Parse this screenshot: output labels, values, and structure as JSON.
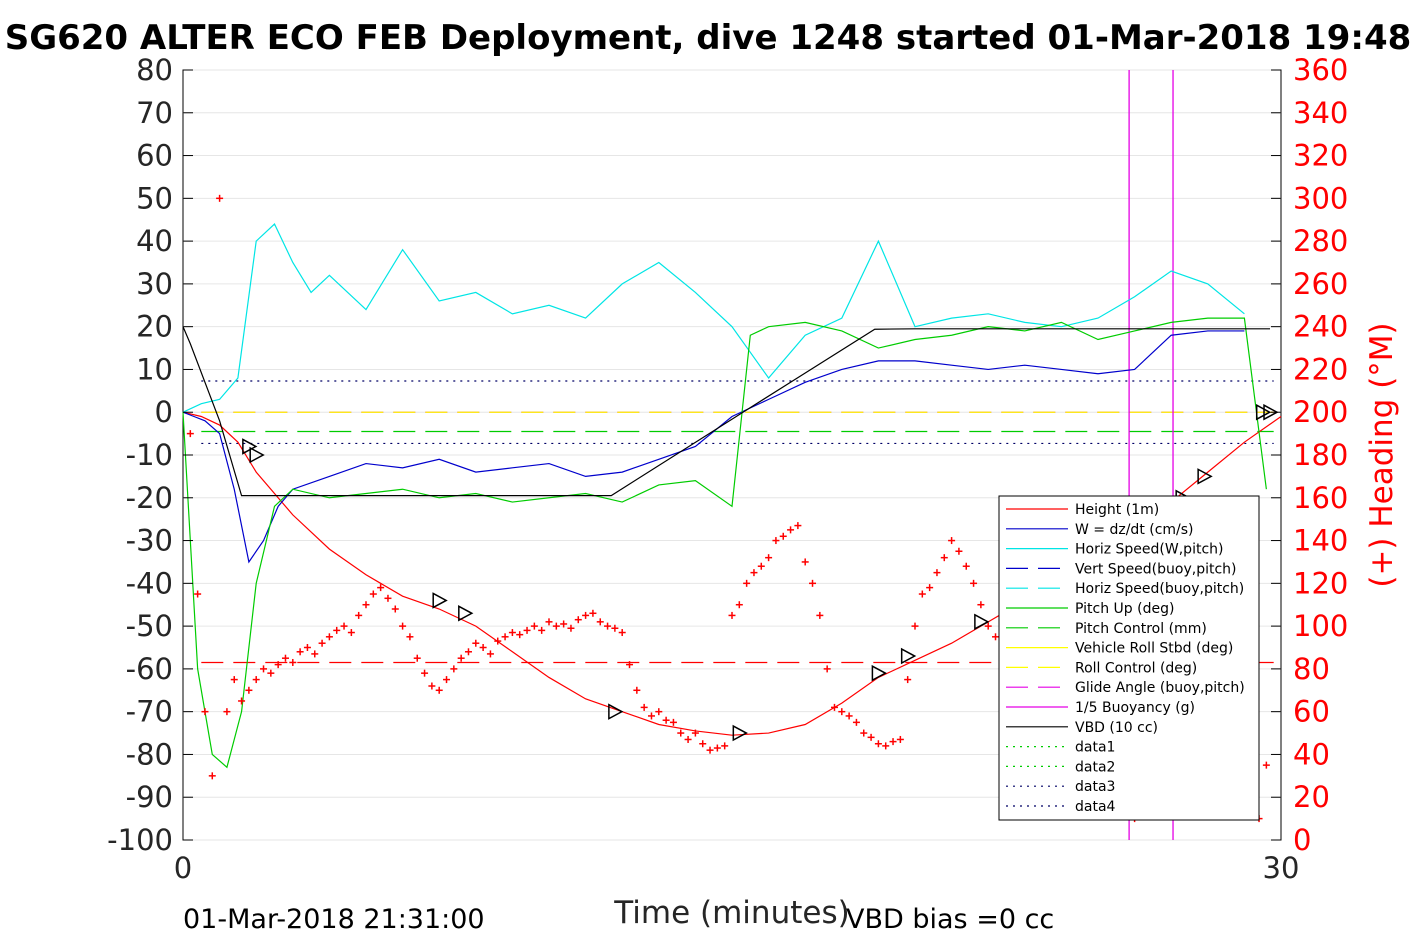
{
  "chart_data": {
    "type": "line",
    "title": "SG620 ALTER ECO FEB Deployment, dive 1248 started 01-Mar-2018 19:48",
    "xlabel": "Time (minutes)",
    "ylabel_right": "(+) Heading (°M)",
    "footer_left": "01-Mar-2018 21:31:00",
    "footer_right": "VBD bias =0 cc",
    "xlim": [
      0,
      30
    ],
    "ylim": [
      -100,
      80
    ],
    "ylim_right": [
      0,
      360
    ],
    "x_ticks": [
      0,
      30
    ],
    "y_ticks": [
      80,
      70,
      60,
      50,
      40,
      30,
      20,
      10,
      0,
      -10,
      -20,
      -30,
      -40,
      -50,
      -60,
      -70,
      -80,
      -90,
      -100
    ],
    "y_ticks_right": [
      360,
      340,
      320,
      300,
      280,
      260,
      240,
      220,
      200,
      180,
      160,
      140,
      120,
      100,
      80,
      60,
      40,
      20,
      0
    ],
    "grid": "horizontal",
    "legend_position": "bottom-right",
    "colors": {
      "height": "#ff0000",
      "w": "#0000cc",
      "horiz_speed": "#00e5e5",
      "pitch": "#00cc00",
      "roll": "#ffff00",
      "glide": "#e500e5",
      "vbd": "#000000",
      "heading": "#ff0000"
    },
    "legend": [
      {
        "label": "Height (1m)",
        "color": "#ff0000",
        "style": "solid"
      },
      {
        "label": "W = dz/dt (cm/s)",
        "color": "#0000cc",
        "style": "solid"
      },
      {
        "label": "Horiz Speed(W,pitch)",
        "color": "#00e5e5",
        "style": "solid"
      },
      {
        "label": "Vert Speed(buoy,pitch)",
        "color": "#0000cc",
        "style": "dashed"
      },
      {
        "label": "Horiz Speed(buoy,pitch)",
        "color": "#00e5e5",
        "style": "dashed"
      },
      {
        "label": "Pitch Up (deg)",
        "color": "#00cc00",
        "style": "solid"
      },
      {
        "label": "Pitch Control (mm)",
        "color": "#00cc00",
        "style": "dashed"
      },
      {
        "label": "Vehicle Roll Stbd (deg)",
        "color": "#ffff00",
        "style": "solid"
      },
      {
        "label": "Roll Control (deg)",
        "color": "#ffff00",
        "style": "dashed"
      },
      {
        "label": "Glide Angle (buoy,pitch)",
        "color": "#e500e5",
        "style": "dashed"
      },
      {
        "label": "1/5 Buoyancy (g)",
        "color": "#e500e5",
        "style": "solid"
      },
      {
        "label": "VBD (10 cc)",
        "color": "#000000",
        "style": "solid"
      },
      {
        "label": "data1",
        "color": "#00cc00",
        "style": "dotted"
      },
      {
        "label": "data2",
        "color": "#00cc00",
        "style": "dotted"
      },
      {
        "label": "data3",
        "color": "#000066",
        "style": "dotted"
      },
      {
        "label": "data4",
        "color": "#000066",
        "style": "dotted"
      }
    ],
    "series": [
      {
        "name": "Height (1m)",
        "x": [
          0.0,
          0.5,
          1.0,
          1.5,
          2.0,
          3.0,
          4.0,
          5.0,
          6.0,
          7.0,
          8.0,
          9.0,
          10.0,
          11.0,
          12.0,
          13.0,
          14.0,
          15.0,
          16.0,
          17.0,
          18.0,
          19.0,
          20.0,
          21.0,
          22.0,
          23.0,
          24.0,
          25.0,
          26.0,
          27.0,
          28.0,
          29.0,
          30.0
        ],
        "y": [
          0,
          -1,
          -3,
          -7,
          -14,
          -24,
          -32,
          -38,
          -43,
          -46,
          -50,
          -56,
          -62,
          -67,
          -70,
          -73,
          -74.5,
          -75.5,
          -75,
          -73,
          -68,
          -62,
          -58,
          -54,
          -49,
          -44,
          -39,
          -34,
          -28,
          -21,
          -14,
          -7,
          -1
        ],
        "scale": 0.3
      },
      {
        "name": "W = dz/dt (cm/s)",
        "x": [
          0,
          0.3,
          0.6,
          1.0,
          1.4,
          1.8,
          2.2,
          2.6,
          3.0,
          4.0,
          5.0,
          6.0,
          7.0,
          8.0,
          9.0,
          10.0,
          11.0,
          12.0,
          13.0,
          14.0,
          15.0,
          16.0,
          17.0,
          18.0,
          19.0,
          20.0,
          21.0,
          22.0,
          23.0,
          24.0,
          25.0,
          26.0,
          27.0,
          28.0,
          29.0
        ],
        "y": [
          0,
          -1,
          -2,
          -5,
          -18,
          -35,
          -30,
          -22,
          -18,
          -15,
          -12,
          -13,
          -11,
          -14,
          -13,
          -12,
          -15,
          -14,
          -11,
          -8,
          -1,
          3,
          7,
          10,
          12,
          12,
          11,
          10,
          11,
          10,
          9,
          10,
          18,
          19,
          19
        ],
        "scale": 0.3
      },
      {
        "name": "Horiz Speed(W,pitch)",
        "x": [
          0,
          0.5,
          1.0,
          1.5,
          2.0,
          2.5,
          3.0,
          3.5,
          4.0,
          5.0,
          6.0,
          7.0,
          8.0,
          9.0,
          10.0,
          11.0,
          12.0,
          13.0,
          14.0,
          15.0,
          16.0,
          17.0,
          18.0,
          19.0,
          20.0,
          21.0,
          22.0,
          23.0,
          24.0,
          25.0,
          26.0,
          27.0,
          28.0,
          29.0
        ],
        "y": [
          0,
          2,
          3,
          8,
          40,
          44,
          35,
          28,
          32,
          24,
          38,
          26,
          28,
          23,
          25,
          22,
          30,
          35,
          28,
          20,
          8,
          18,
          22,
          40,
          20,
          22,
          23,
          21,
          20,
          22,
          27,
          33,
          30,
          23
        ],
        "scale": 0.3
      },
      {
        "name": "Pitch Up (deg)",
        "x": [
          0,
          0.4,
          0.8,
          1.2,
          1.6,
          2.0,
          2.5,
          3.0,
          4.0,
          5.0,
          6.0,
          7.0,
          8.0,
          9.0,
          10.0,
          11.0,
          12.0,
          13.0,
          14.0,
          15.0,
          15.5,
          16.0,
          17.0,
          18.0,
          19.0,
          20.0,
          21.0,
          22.0,
          23.0,
          24.0,
          25.0,
          26.0,
          27.0,
          28.0,
          29.0,
          29.6
        ],
        "y": [
          0,
          -60,
          -80,
          -83,
          -70,
          -40,
          -22,
          -18,
          -20,
          -19,
          -18,
          -20,
          -19,
          -21,
          -20,
          -19,
          -21,
          -17,
          -16,
          -22,
          18,
          20,
          21,
          19,
          15,
          17,
          18,
          20,
          19,
          21,
          17,
          19,
          21,
          22,
          22,
          -18
        ],
        "scale": 0.3
      },
      {
        "name": "VBD (10 cc)",
        "x": [
          0,
          0.2,
          1.0,
          1.6,
          5.0,
          10.0,
          11.7,
          15.3,
          18.9,
          20.0,
          25.0,
          29.7
        ],
        "y": [
          20,
          16,
          -2,
          -19.5,
          -19.5,
          -19.5,
          -19.5,
          0,
          19.4,
          19.5,
          19.5,
          19.5
        ],
        "scale": 0.3
      }
    ],
    "reference_lines": [
      {
        "name": "data3",
        "y": 7.3,
        "color": "#000066",
        "style": "dotted"
      },
      {
        "name": "data4",
        "y": -7.3,
        "color": "#000066",
        "style": "dotted"
      },
      {
        "name": "Glide Angle (buoy,pitch)",
        "y": 0,
        "color": "#e500e5",
        "style": "dashed"
      },
      {
        "name": "Roll Control (deg)",
        "y": 0,
        "color": "#ffff00",
        "style": "dashed"
      },
      {
        "name": "Pitch Control (mm)",
        "y": -4.5,
        "color": "#00cc00",
        "style": "dashed"
      },
      {
        "name": "Heading mean",
        "y": -58.5,
        "color": "#ff0000",
        "style": "dashed"
      }
    ],
    "vertical_lines": [
      {
        "x": 25.85,
        "color": "#e500e5"
      },
      {
        "x": 27.05,
        "color": "#e500e5"
      }
    ],
    "heading_points": {
      "name": "(+) Heading (°M)",
      "x": [
        0.2,
        0.4,
        0.6,
        0.8,
        1.0,
        1.2,
        1.4,
        1.6,
        1.8,
        2.0,
        2.2,
        2.4,
        2.6,
        2.8,
        3.0,
        3.2,
        3.4,
        3.6,
        3.8,
        4.0,
        4.2,
        4.4,
        4.6,
        4.8,
        5.0,
        5.2,
        5.4,
        5.6,
        5.8,
        6.0,
        6.2,
        6.4,
        6.6,
        6.8,
        7.0,
        7.2,
        7.4,
        7.6,
        7.8,
        8.0,
        8.2,
        8.4,
        8.6,
        8.8,
        9.0,
        9.2,
        9.4,
        9.6,
        9.8,
        10.0,
        10.2,
        10.4,
        10.6,
        10.8,
        11.0,
        11.2,
        11.4,
        11.6,
        11.8,
        12.0,
        12.2,
        12.4,
        12.6,
        12.8,
        13.0,
        13.2,
        13.4,
        13.6,
        13.8,
        14.0,
        14.2,
        14.4,
        14.6,
        14.8,
        15.0,
        15.2,
        15.4,
        15.6,
        15.8,
        16.0,
        16.2,
        16.4,
        16.6,
        16.8,
        17.0,
        17.2,
        17.4,
        17.6,
        17.8,
        18.0,
        18.2,
        18.4,
        18.6,
        18.8,
        19.0,
        19.2,
        19.4,
        19.6,
        19.8,
        20.0,
        20.2,
        20.4,
        20.6,
        20.8,
        21.0,
        21.2,
        21.4,
        21.6,
        21.8,
        22.0,
        22.2,
        22.4,
        22.6,
        22.8,
        23.0,
        23.2,
        23.4,
        23.6,
        23.8,
        24.0,
        24.2,
        24.4,
        24.6,
        24.8,
        25.0,
        25.2,
        25.4,
        25.6,
        25.8,
        26.0,
        26.2,
        26.4,
        26.6,
        26.8,
        27.0,
        27.2,
        27.4,
        27.6,
        27.8,
        28.0,
        28.2,
        28.4,
        28.6,
        28.8,
        29.0,
        29.2,
        29.4,
        29.6
      ],
      "y": [
        190,
        115,
        60,
        30,
        300,
        60,
        75,
        65,
        70,
        75,
        80,
        78,
        82,
        85,
        83,
        88,
        90,
        87,
        92,
        95,
        98,
        100,
        97,
        105,
        110,
        115,
        118,
        113,
        108,
        100,
        95,
        85,
        78,
        72,
        70,
        75,
        80,
        85,
        88,
        92,
        90,
        87,
        93,
        95,
        97,
        96,
        98,
        100,
        98,
        102,
        100,
        101,
        99,
        103,
        105,
        106,
        102,
        100,
        99,
        97,
        82,
        70,
        62,
        58,
        60,
        56,
        55,
        50,
        47,
        50,
        45,
        42,
        43,
        44,
        105,
        110,
        120,
        125,
        128,
        132,
        140,
        142,
        145,
        147,
        130,
        120,
        105,
        80,
        62,
        60,
        58,
        55,
        50,
        48,
        45,
        44,
        46,
        47,
        75,
        100,
        115,
        118,
        125,
        132,
        140,
        135,
        128,
        120,
        110,
        100,
        95,
        90,
        82,
        70,
        65,
        60,
        56,
        52,
        48,
        45,
        42,
        40,
        38,
        35,
        30,
        25,
        22,
        20,
        15,
        10,
        35,
        42,
        45,
        47,
        39,
        36,
        33,
        30,
        28,
        26,
        24,
        22,
        20,
        18,
        15,
        12,
        10,
        35
      ]
    },
    "triangle_markers": {
      "x": [
        1.8,
        2.0,
        7.0,
        7.7,
        11.8,
        15.2,
        19.0,
        19.8,
        21.8,
        22.7,
        24.5,
        25.2,
        27.3,
        27.9,
        29.5,
        29.7
      ],
      "y": [
        -8,
        -10,
        -44,
        -47,
        -70,
        -75,
        -61,
        -57,
        -49,
        -45,
        -34,
        -31,
        -20,
        -15,
        0,
        0
      ]
    }
  }
}
